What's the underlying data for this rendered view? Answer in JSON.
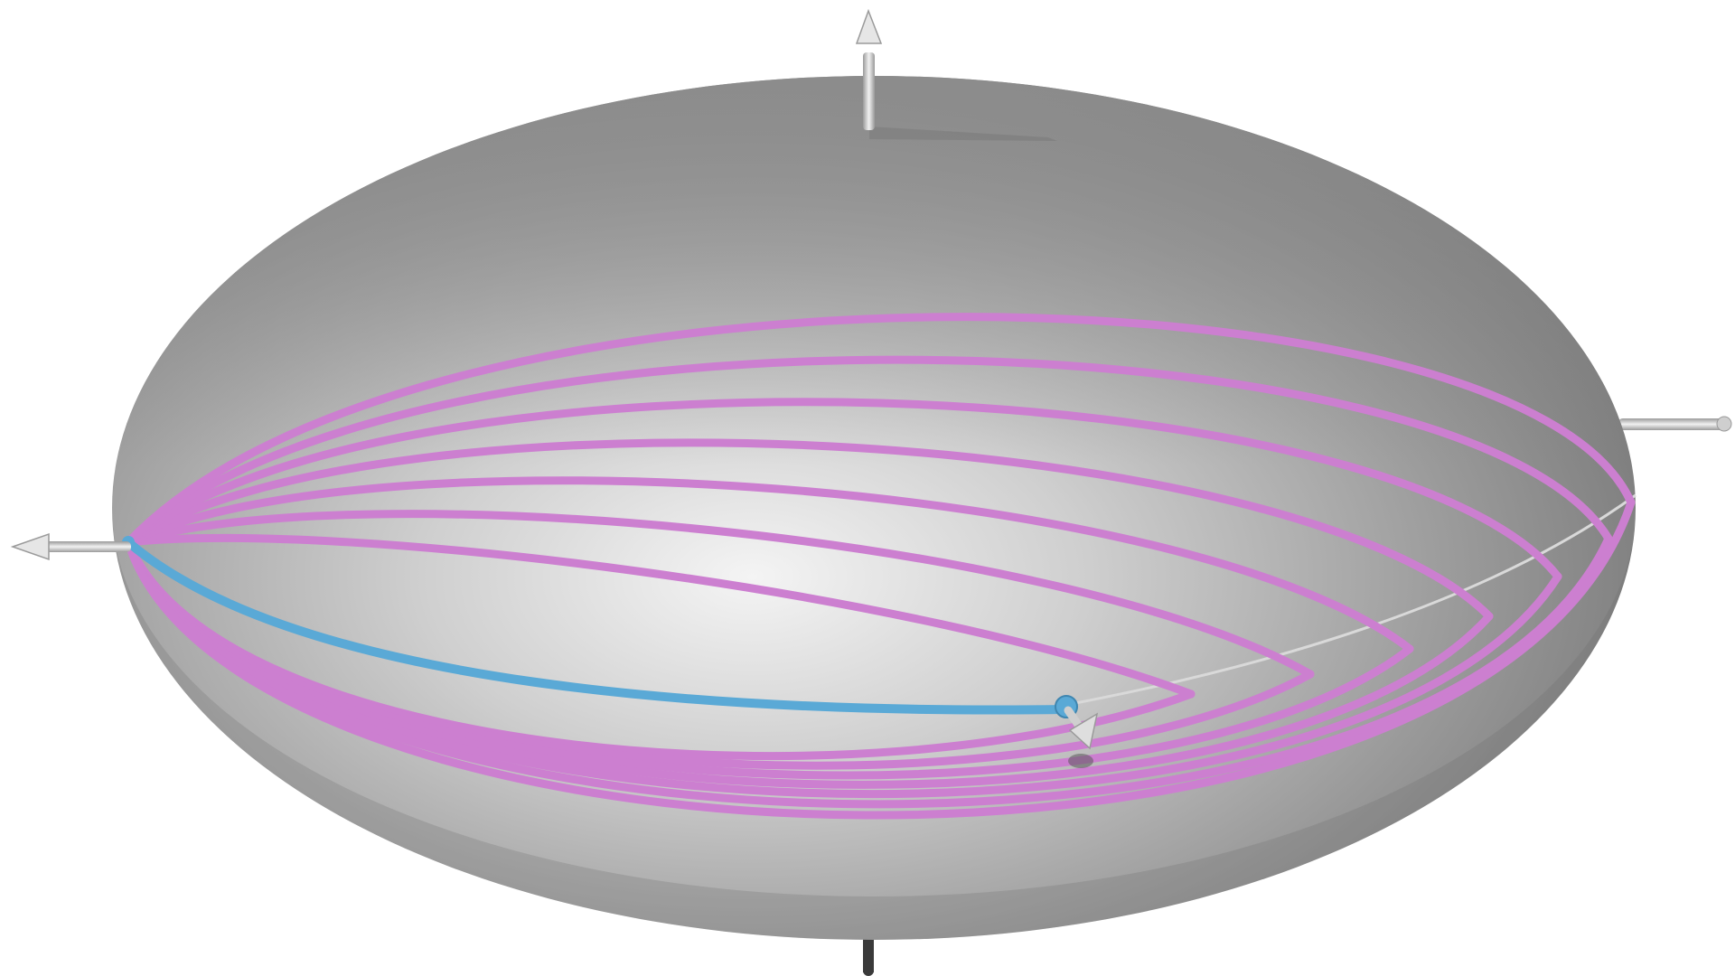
{
  "colors": {
    "background": "#ffffff",
    "surface_light": "#f2f2f2",
    "surface_mid": "#a6a6a6",
    "surface_dark": "#6e6e6e",
    "geodesic_family": "#cc7fd0",
    "highlighted_geodesic": "#5aa9d6",
    "axis_shaft": "#c8c8c8"
  },
  "figure": {
    "surface": "ellipsoid",
    "geodesic_count": 7,
    "axes": [
      "arrow-up",
      "arrow-left",
      "arrow-right",
      "arrow-down"
    ]
  }
}
